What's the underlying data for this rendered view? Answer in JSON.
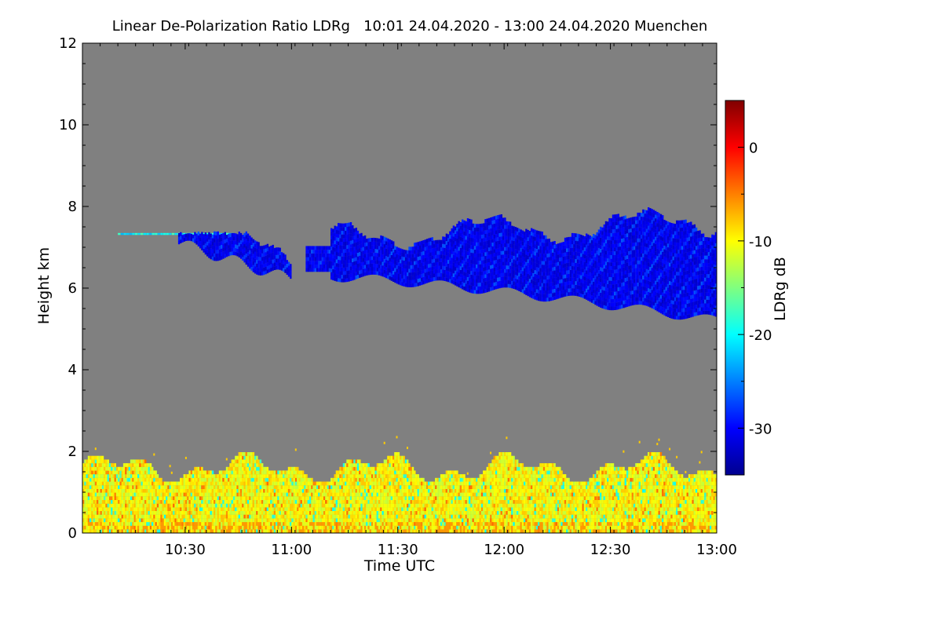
{
  "chart_data": {
    "type": "heatmap",
    "title": "Linear De-Polarization Ratio LDRg   10:01 24.04.2020 - 13:00 24.04.2020 Muenchen",
    "xlabel": "Time UTC",
    "ylabel": "Height km",
    "xlim_minutes": [
      601,
      780
    ],
    "x_ticks": [
      {
        "label": "10:30",
        "value": 630
      },
      {
        "label": "11:00",
        "value": 660
      },
      {
        "label": "11:30",
        "value": 690
      },
      {
        "label": "12:00",
        "value": 720
      },
      {
        "label": "12:30",
        "value": 750
      },
      {
        "label": "13:00",
        "value": 780
      }
    ],
    "ylim": [
      0,
      12
    ],
    "y_ticks": [
      {
        "label": "0",
        "value": 0
      },
      {
        "label": "2",
        "value": 2
      },
      {
        "label": "4",
        "value": 4
      },
      {
        "label": "6",
        "value": 6
      },
      {
        "label": "8",
        "value": 8
      },
      {
        "label": "10",
        "value": 10
      },
      {
        "label": "12",
        "value": 12
      }
    ],
    "colorbar": {
      "label": "LDRg dB",
      "range": [
        -35,
        5
      ],
      "ticks": [
        {
          "label": "0",
          "value": 0
        },
        {
          "label": "-10",
          "value": -10
        },
        {
          "label": "-20",
          "value": -20
        },
        {
          "label": "-30",
          "value": -30
        }
      ]
    },
    "no_signal_color": "#808080",
    "features": [
      {
        "name": "ice-cloud-layer",
        "ldr_db": -31,
        "segments": [
          {
            "name": "thin-line",
            "start_min": 611,
            "end_min": 643,
            "base_km": 7.2,
            "top_km": 7.35,
            "ldr_db": -20
          },
          {
            "name": "left-cloud",
            "start_min": 628,
            "end_min": 660,
            "base_km": 6.2,
            "top_km": 7.3,
            "ldr_db": -31
          },
          {
            "name": "main-cloud",
            "start_min": 664,
            "end_min": 780,
            "base_km": 5.0,
            "top_km": 7.9,
            "ldr_db": -31
          }
        ]
      },
      {
        "name": "boundary-layer",
        "start_min": 601,
        "end_min": 780,
        "base_km": 0.0,
        "top_km": 2.1,
        "ldr_db_range": [
          -22,
          -3
        ],
        "typical_ldr_db": -10
      }
    ]
  }
}
